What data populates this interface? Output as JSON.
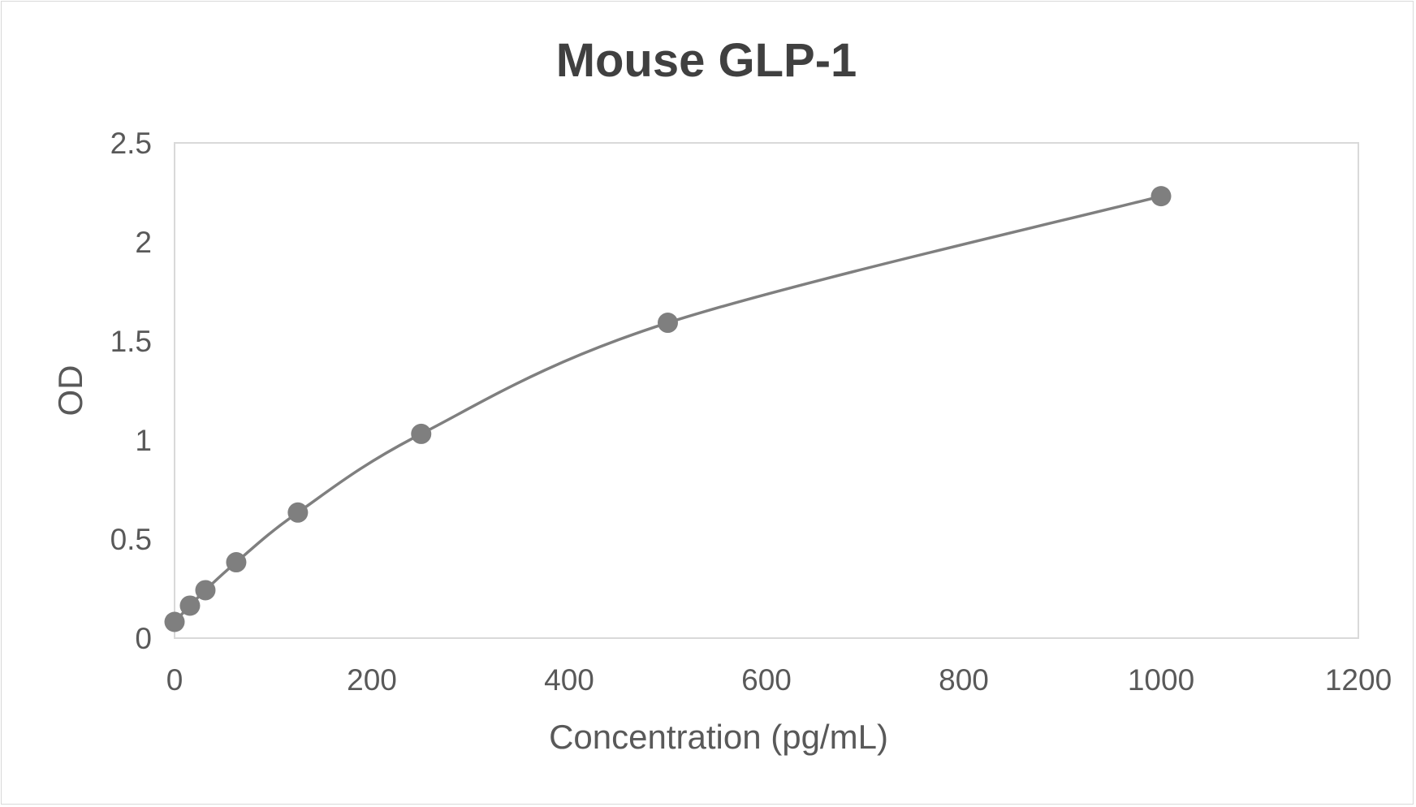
{
  "chart_data": {
    "type": "scatter",
    "title": "Mouse GLP-1",
    "xlabel": "Concentration (pg/mL)",
    "ylabel": "OD",
    "xlim": [
      0,
      1200
    ],
    "ylim": [
      0,
      2.5
    ],
    "xticks": [
      "0",
      "200",
      "400",
      "600",
      "800",
      "1000",
      "1200"
    ],
    "yticks": [
      "0",
      "0.5",
      "1",
      "1.5",
      "2",
      "2.5"
    ],
    "grid": false,
    "smooth_line": true,
    "series": [
      {
        "x": [
          0,
          15.6,
          31.25,
          62.5,
          125,
          250,
          500,
          1000
        ],
        "y": [
          0.082,
          0.164,
          0.242,
          0.383,
          0.634,
          1.031,
          1.592,
          2.231
        ]
      }
    ],
    "colors": {
      "marker": "#7f7f7f",
      "line": "#7f7f7f",
      "text": "#595959",
      "plot_border": "#d9d9d9"
    }
  }
}
